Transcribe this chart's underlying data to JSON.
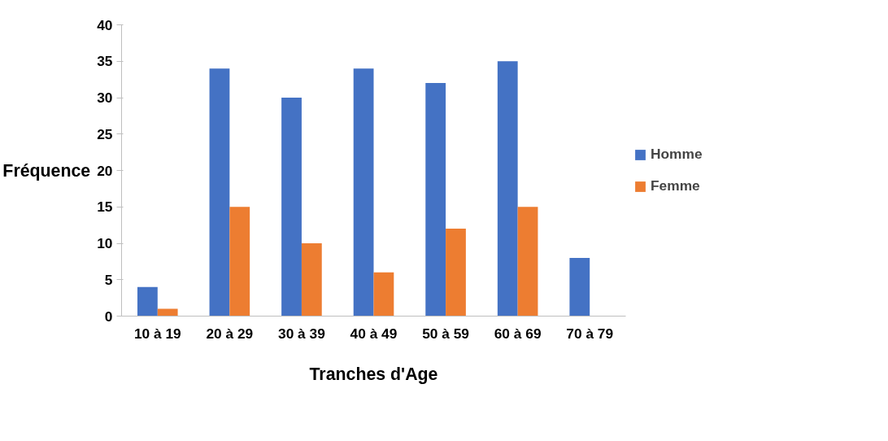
{
  "chart_data": {
    "type": "bar",
    "xlabel": "Tranches d'Age",
    "ylabel": "Fréquence",
    "categories": [
      "10 à 19",
      "20 à 29",
      "30 à 39",
      "40 à 49",
      "50 à 59",
      "60 à 69",
      "70 à 79"
    ],
    "series": [
      {
        "name": "Homme",
        "color": "#4472c4",
        "values": [
          4,
          34,
          30,
          34,
          32,
          35,
          8
        ]
      },
      {
        "name": "Femme",
        "color": "#ed7d31",
        "values": [
          1,
          15,
          10,
          6,
          12,
          15,
          0
        ]
      }
    ],
    "ylim": [
      0,
      40
    ],
    "yticks": [
      0,
      5,
      10,
      15,
      20,
      25,
      30,
      35,
      40
    ],
    "grid": false,
    "legend": "right"
  }
}
